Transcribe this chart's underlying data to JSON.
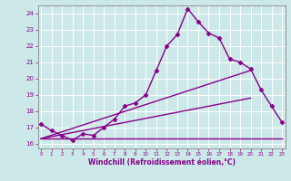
{
  "xlabel": "Windchill (Refroidissement éolien,°C)",
  "bg_color": "#cce8e8",
  "line_color": "#880088",
  "grid_color": "#aacccc",
  "ylim": [
    15.7,
    24.5
  ],
  "xlim": [
    -0.3,
    23.3
  ],
  "yticks": [
    16,
    17,
    18,
    19,
    20,
    21,
    22,
    23,
    24
  ],
  "xticks": [
    0,
    1,
    2,
    3,
    4,
    5,
    6,
    7,
    8,
    9,
    10,
    11,
    12,
    13,
    14,
    15,
    16,
    17,
    18,
    19,
    20,
    21,
    22,
    23
  ],
  "series": [
    {
      "x": [
        0,
        1,
        2,
        3,
        4,
        5,
        6,
        7,
        8,
        9,
        10,
        11,
        12,
        13,
        14,
        15,
        16,
        17,
        18,
        19,
        20,
        21,
        22,
        23
      ],
      "y": [
        17.2,
        16.8,
        16.5,
        16.2,
        16.6,
        16.5,
        17.0,
        17.5,
        18.3,
        18.5,
        19.0,
        20.5,
        22.0,
        22.7,
        24.3,
        23.5,
        22.8,
        22.5,
        21.2,
        21.0,
        20.6,
        19.3,
        18.3,
        17.3
      ],
      "marker": "D",
      "markersize": 2.5,
      "linewidth": 1.0,
      "has_marker": true
    },
    {
      "x": [
        0,
        23
      ],
      "y": [
        16.3,
        16.3
      ],
      "marker": null,
      "markersize": 0,
      "linewidth": 1.0,
      "has_marker": false
    },
    {
      "x": [
        0,
        20
      ],
      "y": [
        16.3,
        20.5
      ],
      "marker": null,
      "markersize": 0,
      "linewidth": 1.0,
      "has_marker": false
    },
    {
      "x": [
        0,
        20
      ],
      "y": [
        16.3,
        18.8
      ],
      "marker": null,
      "markersize": 0,
      "linewidth": 1.0,
      "has_marker": false
    }
  ]
}
